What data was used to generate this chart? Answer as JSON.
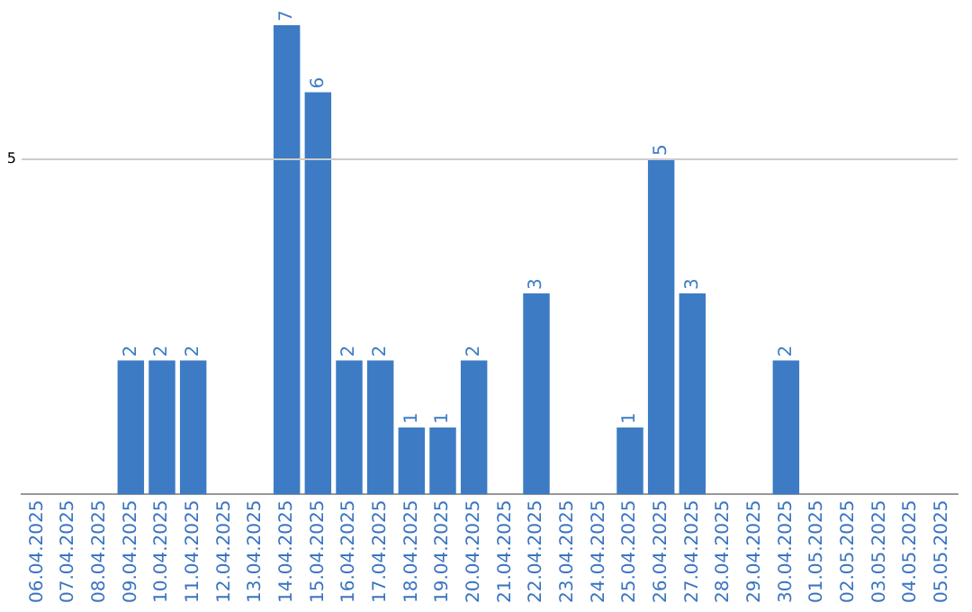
{
  "chart_data": {
    "type": "bar",
    "categories": [
      "06.04.2025",
      "07.04.2025",
      "08.04.2025",
      "09.04.2025",
      "10.04.2025",
      "11.04.2025",
      "12.04.2025",
      "13.04.2025",
      "14.04.2025",
      "15.04.2025",
      "16.04.2025",
      "17.04.2025",
      "18.04.2025",
      "19.04.2025",
      "20.04.2025",
      "21.04.2025",
      "22.04.2025",
      "23.04.2025",
      "24.04.2025",
      "25.04.2025",
      "26.04.2025",
      "27.04.2025",
      "28.04.2025",
      "29.04.2025",
      "30.04.2025",
      "01.05.2025",
      "02.05.2025",
      "03.05.2025",
      "04.05.2025",
      "05.05.2025"
    ],
    "values": [
      0,
      0,
      0,
      2,
      2,
      2,
      0,
      0,
      7,
      6,
      2,
      2,
      1,
      1,
      2,
      0,
      3,
      0,
      0,
      1,
      5,
      3,
      0,
      0,
      2,
      0,
      0,
      0,
      0,
      0
    ],
    "value_labels": [
      null,
      null,
      null,
      "2",
      "2",
      "2",
      null,
      null,
      "7",
      "6",
      "2",
      "2",
      "1",
      "1",
      "2",
      null,
      "3",
      null,
      null,
      "1",
      "5",
      "3",
      null,
      null,
      "2",
      null,
      null,
      null,
      null,
      null
    ],
    "color": "#3d7cc4",
    "ref_lines": [
      {
        "axis": "y",
        "value": 5,
        "label": "5",
        "color": "#cccccc"
      }
    ]
  }
}
